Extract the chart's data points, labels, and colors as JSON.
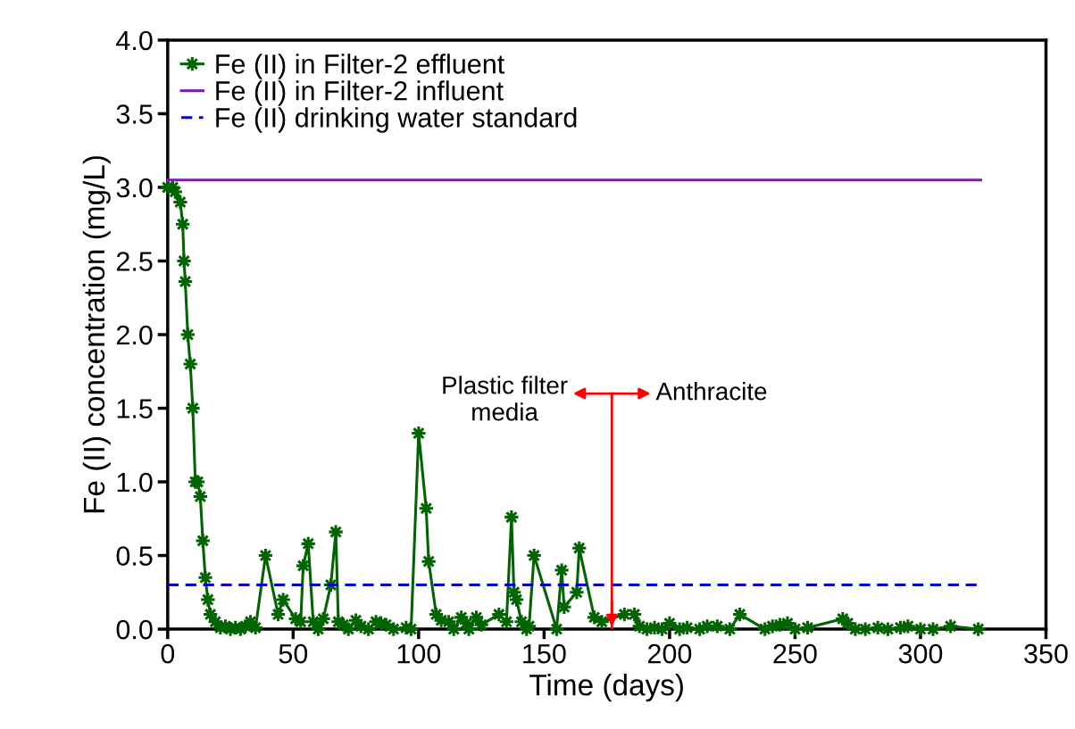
{
  "chart_data": {
    "type": "line",
    "xlabel": "Time (days)",
    "ylabel": "Fe (II) concentration (mg/L)",
    "xlim": [
      0,
      350
    ],
    "xticks": [
      0,
      50,
      100,
      150,
      200,
      250,
      300,
      350
    ],
    "ylim": [
      0,
      4.0
    ],
    "yticks": [
      {
        "value": 0,
        "label": "0.0"
      },
      {
        "value": 0.5,
        "label": "0.5"
      },
      {
        "value": 1.0,
        "label": "1.0"
      },
      {
        "value": 1.5,
        "label": "1.5"
      },
      {
        "value": 2.0,
        "label": "2.0"
      },
      {
        "value": 2.5,
        "label": "2.5"
      },
      {
        "value": 3.0,
        "label": "3.0"
      },
      {
        "value": 3.5,
        "label": "3.5"
      },
      {
        "value": 4.0,
        "label": "4.0"
      }
    ],
    "grid": false,
    "legend": "top left",
    "series": [
      {
        "name": "Fe (II) in Filter-2 effluent",
        "color": "#006400",
        "marker": "star",
        "line_style": "solid",
        "x": [
          0,
          2,
          3,
          5,
          6,
          6.5,
          7,
          8,
          9,
          10,
          11,
          12,
          13,
          14,
          15,
          16,
          17,
          19,
          21,
          23,
          25,
          27,
          29,
          31,
          33,
          35,
          39,
          44,
          46,
          51,
          53,
          54,
          56,
          58,
          60,
          62,
          65,
          67,
          68,
          70,
          72,
          75,
          77,
          80,
          83,
          85,
          87,
          90,
          95,
          97,
          100,
          103,
          104,
          107,
          109,
          112,
          114,
          117,
          119,
          120,
          123,
          125,
          132,
          135,
          137,
          138,
          139,
          141,
          143,
          144,
          146,
          155,
          157,
          158,
          163,
          164,
          170,
          173,
          182,
          186,
          188,
          191,
          194,
          197,
          200,
          204,
          207,
          212,
          215,
          219,
          224,
          228,
          238,
          241,
          244,
          247,
          250,
          255,
          269,
          271,
          274,
          278,
          283,
          287,
          292,
          295,
          300,
          305,
          312,
          323
        ],
        "values": [
          3.0,
          3.0,
          2.97,
          2.9,
          2.75,
          2.5,
          2.36,
          2.0,
          1.8,
          1.5,
          1.0,
          1.0,
          0.9,
          0.6,
          0.35,
          0.2,
          0.1,
          0.05,
          0.01,
          0.02,
          0.0,
          0.01,
          0.0,
          0.02,
          0.05,
          0.01,
          0.5,
          0.1,
          0.2,
          0.07,
          0.05,
          0.43,
          0.58,
          0.05,
          0.0,
          0.07,
          0.3,
          0.66,
          0.05,
          0.03,
          0.0,
          0.06,
          0.02,
          0.0,
          0.05,
          0.04,
          0.03,
          0.0,
          0.01,
          0.0,
          1.33,
          0.82,
          0.46,
          0.1,
          0.06,
          0.05,
          0.0,
          0.08,
          0.04,
          0.0,
          0.08,
          0.03,
          0.1,
          0.05,
          0.76,
          0.25,
          0.2,
          0.05,
          0.0,
          0.02,
          0.5,
          0.0,
          0.4,
          0.15,
          0.25,
          0.55,
          0.08,
          0.05,
          0.1,
          0.1,
          0.02,
          0.0,
          0.01,
          0.0,
          0.04,
          0.0,
          0.01,
          0.0,
          0.02,
          0.02,
          0.0,
          0.1,
          0.0,
          0.02,
          0.03,
          0.04,
          0.0,
          0.01,
          0.07,
          0.04,
          0.0,
          0.0,
          0.01,
          0.0,
          0.01,
          0.02,
          0.0,
          0.0,
          0.02,
          0.0
        ]
      },
      {
        "name": "Fe (II) in Filter-2 influent",
        "color": "#7b1fa2",
        "marker": "none",
        "line_style": "solid",
        "x": [
          0,
          324
        ],
        "values": [
          3.05,
          3.05
        ]
      },
      {
        "name": "Fe (II) drinking water standard",
        "color": "#0000cc",
        "marker": "none",
        "line_style": "dashed",
        "x": [
          0,
          324
        ],
        "values": [
          0.3,
          0.3
        ]
      }
    ],
    "ref_lines": [
      {
        "axis": "x",
        "value": 177,
        "color": "#ff0000"
      }
    ],
    "annotations": [
      "Plastic filter\nmedia",
      "Anthracite"
    ]
  }
}
